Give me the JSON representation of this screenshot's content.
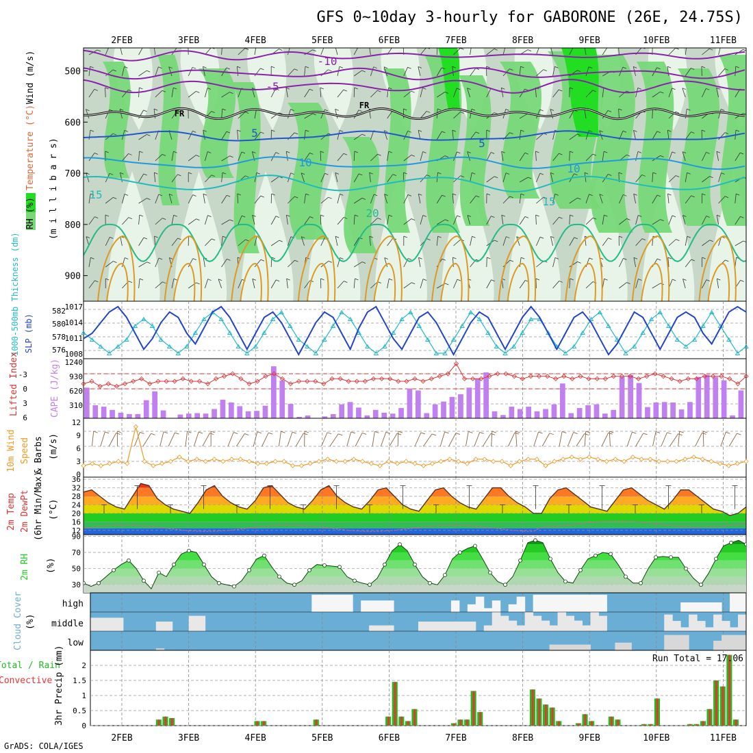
{
  "title": "GFS 0~10day 3-hourly for GABORONE (26E, 24.75S)",
  "footer": "GrADS: COLA/IGES",
  "dates": [
    "2FEB",
    "3FEB",
    "4FEB",
    "5FEB",
    "6FEB",
    "7FEB",
    "8FEB",
    "9FEB",
    "10FEB",
    "11FEB"
  ],
  "colors": {
    "rh_light": "#e8f4e8",
    "rh_mid": "#c8d8c8",
    "rh_green": "#78d878",
    "rh_bright": "#22dd22",
    "temp_cold": "#8822aa",
    "temp_freeze": "#000000",
    "temp_5": "#2255cc",
    "temp_10": "#2299dd",
    "temp_15": "#22bbbb",
    "temp_20": "#22bb88",
    "temp_warm": "#dd9922",
    "temp_hot": "#cc2288",
    "slp": "#2244cc",
    "thickness": "#22bbcc",
    "lifted": "#dd3333",
    "cape": "#c080f0",
    "wind10m": "#ee9922",
    "rh2m": "#22cc22",
    "cloud_bg": "#6aaed6",
    "cloud_fill": "#f0f0f0",
    "precip_total": "#22bb22",
    "precip_conv": "#ee3333"
  },
  "panels": {
    "upper": {
      "ylabel_rh": "RH (%)",
      "ylabel_temp": "Temperature (°C)",
      "ylabel_wind": "Wind (m/s)",
      "ylabel_p": "(m i l l i b a r s)",
      "yticks": [
        "500",
        "600",
        "700",
        "800",
        "900"
      ],
      "contour_labels": [
        "-10",
        "-5",
        "FR",
        "FR",
        "5",
        "5",
        "10",
        "10",
        "15",
        "15",
        "20"
      ]
    },
    "slp": {
      "ylabel_left": "1000-500mb Thickness (dm)",
      "ylabel_right": "SLP (mb)",
      "yticks_left": [
        "582",
        "580",
        "578",
        "576"
      ],
      "yticks_right": [
        "1017",
        "1014",
        "1011",
        "1008"
      ]
    },
    "cape": {
      "ylabel_left": "Lifted Index",
      "ylabel_right": "CAPE (J/kg)",
      "yticks_left": [
        "-3",
        "0",
        "3",
        "6"
      ],
      "yticks_right": [
        "1240",
        "930",
        "620",
        "310"
      ]
    },
    "wind": {
      "ylabel_a": "10m Wind",
      "ylabel_b": "Speed",
      "ylabel_c": "& Barbs",
      "ylabel_unit": "(m/s)",
      "yticks": [
        "12",
        "9",
        "6",
        "3",
        "0"
      ]
    },
    "temp": {
      "ylabel_a": "2m Temp",
      "ylabel_b": "2m DewPt",
      "ylabel_c": "(6hr Min/Max)",
      "ylabel_unit": "(°C)",
      "yticks": [
        "36",
        "32",
        "28",
        "24",
        "20",
        "16",
        "12"
      ]
    },
    "rh": {
      "ylabel": "2m RH",
      "ylabel_unit": "(%)",
      "yticks": [
        "90",
        "70",
        "50",
        "30"
      ]
    },
    "cloud": {
      "ylabel": "Cloud Cover",
      "ylabel_unit": "(%)",
      "levels": [
        "high",
        "middle",
        "low"
      ]
    },
    "precip": {
      "ylabel_a": "Total / Rain",
      "ylabel_b": "Convective",
      "ylabel_c": "3hr Precip (mm)",
      "yticks": [
        "2",
        "1.5",
        "1",
        "0.5",
        "0"
      ],
      "run_total": "Run Total = 17.06"
    }
  },
  "chart_data": [
    {
      "type": "line",
      "name_key": "slp",
      "series": [
        {
          "values": [
            1011,
            1012,
            1014,
            1016,
            1017,
            1015,
            1012,
            1009,
            1011,
            1014,
            1016,
            1015,
            1012,
            1010,
            1013,
            1016,
            1017,
            1015,
            1012,
            1009,
            1012,
            1015,
            1016,
            1014,
            1011,
            1008,
            1011,
            1014,
            1016,
            1015,
            1012,
            1009,
            1013,
            1016,
            1017,
            1014,
            1011,
            1009,
            1012,
            1015,
            1016,
            1014,
            1011,
            1008,
            1011,
            1014,
            1016,
            1015,
            1012,
            1009,
            1012,
            1015,
            1017,
            1015,
            1012,
            1009,
            1012,
            1015,
            1016,
            1014,
            1011,
            1008,
            1010,
            1013,
            1016,
            1015,
            1012,
            1009,
            1012,
            1015,
            1016,
            1015,
            1012,
            1010,
            1013,
            1016,
            1017,
            1016
          ]
        },
        {
          "values": [
            579,
            578,
            577,
            576,
            577,
            578,
            580,
            581,
            580,
            578,
            577,
            576,
            577,
            579,
            581,
            582,
            581,
            579,
            577,
            576,
            577,
            579,
            581,
            582,
            580,
            578,
            577,
            576,
            578,
            580,
            582,
            581,
            579,
            577,
            576,
            577,
            579,
            581,
            582,
            580,
            578,
            576,
            576,
            578,
            580,
            582,
            581,
            579,
            577,
            576,
            577,
            579,
            581,
            581,
            579,
            577,
            576,
            577,
            579,
            581,
            582,
            580,
            578,
            576,
            577,
            579,
            581,
            582,
            580,
            578,
            577,
            578,
            580,
            582,
            580,
            578,
            576,
            577
          ]
        }
      ]
    },
    {
      "type": "bar",
      "name_key": "cape",
      "values": [
        660,
        280,
        250,
        180,
        120,
        90,
        90,
        390,
        580,
        170,
        0,
        80,
        100,
        110,
        100,
        200,
        400,
        340,
        260,
        150,
        160,
        270,
        1120,
        810,
        310,
        30,
        60,
        0,
        40,
        90,
        300,
        350,
        230,
        60,
        180,
        120,
        100,
        220,
        640,
        600,
        110,
        300,
        360,
        460,
        520,
        660,
        850,
        990,
        150,
        70,
        250,
        200,
        250,
        150,
        200,
        300,
        750,
        110,
        220,
        280,
        300,
        100,
        180,
        890,
        930,
        760,
        240,
        340,
        350,
        340,
        190,
        350,
        890,
        940,
        890,
        820,
        60,
        600
      ]
    },
    {
      "type": "line",
      "name_key": "lifted_index",
      "values": [
        -1,
        -1.5,
        -0.5,
        -1,
        -0.5,
        -1,
        -1.5,
        -2,
        -1,
        -1.5,
        -1.5,
        -1.5,
        -2,
        -1.5,
        -1.5,
        -1,
        -2,
        -2.5,
        -3,
        -2,
        -1,
        -1.5,
        -2.5,
        -3,
        -2,
        -1,
        -1.5,
        -1.5,
        -1.5,
        -1,
        -2,
        -2,
        -1.5,
        -1.5,
        -1.5,
        -2,
        -2,
        -2,
        -1.5,
        -1.5,
        -2,
        -1.5,
        -2,
        -2.5,
        -3,
        -5,
        -2,
        -2,
        -2,
        -2.5,
        -3,
        -3,
        -2.5,
        -2,
        -2.5,
        -2.5,
        -2.5,
        -2,
        -2.5,
        -2,
        -2.5,
        -2,
        -2,
        -2,
        -2.5,
        -2.5,
        -2.5,
        -2,
        -2.5,
        -3,
        -2.5,
        -2,
        -1.5,
        -2,
        -2,
        -2.5,
        -2.5,
        -2.5,
        -2,
        -1,
        -2.5
      ]
    },
    {
      "type": "line",
      "name_key": "wind10m",
      "values": [
        2,
        2.5,
        2,
        2.5,
        3,
        2.5,
        11,
        3,
        2,
        2.5,
        3,
        4,
        3,
        3.5,
        3,
        3.5,
        3,
        3.5,
        3.5,
        3,
        2.5,
        2.5,
        3,
        3,
        2,
        2,
        2.5,
        3,
        3.5,
        3,
        3,
        3.5,
        3,
        2.5,
        2,
        3,
        2.5,
        3,
        2.5,
        2,
        2.5,
        3,
        3.5,
        3,
        2.5,
        3.5,
        3.5,
        3,
        3,
        2,
        3,
        3.5,
        3.5,
        2,
        3,
        3.5,
        4,
        3.5,
        4,
        3.5,
        3,
        3.5,
        3,
        4,
        3.5,
        3.5,
        3,
        3,
        3,
        3.5,
        4,
        3.5,
        3,
        2.5,
        2,
        2.5,
        3
      ]
    },
    {
      "type": "area",
      "name_key": "temp2m",
      "values": [
        30,
        31,
        28,
        25,
        23,
        22,
        28,
        34,
        33,
        27,
        24,
        22,
        21,
        20,
        25,
        31,
        33,
        28,
        25,
        23,
        22,
        26,
        32,
        33,
        29,
        25,
        23,
        22,
        26,
        31,
        33,
        28,
        25,
        23,
        22,
        26,
        31,
        32,
        28,
        24,
        22,
        21,
        26,
        31,
        32,
        28,
        25,
        23,
        22,
        27,
        32,
        32,
        28,
        25,
        23,
        20,
        20,
        27,
        31,
        32,
        29,
        26,
        23,
        22,
        21,
        26,
        31,
        32,
        29,
        26,
        24,
        22,
        26,
        31,
        31,
        28,
        25,
        22,
        21,
        19,
        20,
        23
      ]
    },
    {
      "type": "area",
      "name_key": "rh2m",
      "values": [
        32,
        28,
        32,
        40,
        48,
        55,
        60,
        50,
        35,
        25,
        45,
        40,
        55,
        68,
        72,
        70,
        55,
        40,
        32,
        30,
        28,
        35,
        48,
        62,
        66,
        52,
        40,
        32,
        30,
        35,
        48,
        55,
        54,
        53,
        52,
        40,
        35,
        32,
        30,
        38,
        55,
        72,
        80,
        72,
        55,
        40,
        32,
        30,
        42,
        62,
        70,
        75,
        78,
        62,
        45,
        34,
        30,
        40,
        60,
        82,
        85,
        82,
        62,
        45,
        34,
        32,
        48,
        62,
        66,
        70,
        68,
        55,
        40,
        32,
        32,
        50,
        64,
        65,
        64,
        64,
        50,
        38,
        30,
        44,
        62,
        78,
        82,
        85,
        80
      ]
    },
    {
      "type": "bar",
      "name_key": "precip",
      "values": [
        0,
        0,
        0,
        0,
        0,
        0,
        0,
        0,
        0,
        0,
        0.2,
        0.3,
        0.25,
        0,
        0,
        0,
        0,
        0,
        0,
        0,
        0,
        0,
        0,
        0,
        0,
        0.15,
        0.15,
        0,
        0,
        0,
        0,
        0,
        0,
        0,
        0.2,
        0,
        0,
        0,
        0,
        0,
        0,
        0,
        0,
        0,
        0,
        0.3,
        1.45,
        0.3,
        0.15,
        0.55,
        0,
        0,
        0,
        0,
        0,
        0.08,
        0.2,
        0.2,
        1.15,
        0.45,
        0,
        0,
        0,
        0,
        0,
        0,
        0,
        1.2,
        0.9,
        0.7,
        0.6,
        0.15,
        0,
        0,
        0.08,
        0.38,
        0.15,
        0,
        0,
        0.3,
        0.2,
        0,
        0,
        0,
        0.05,
        0.05,
        0.9,
        0,
        0,
        0,
        0,
        0.05,
        0.05,
        0.15,
        0.55,
        1.5,
        1.3,
        2.35,
        0.2,
        0
      ]
    }
  ]
}
